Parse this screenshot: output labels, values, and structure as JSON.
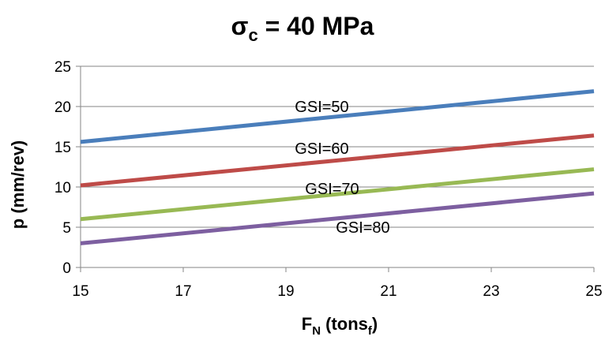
{
  "chart_data": {
    "type": "line",
    "title": {
      "symbol": "σ",
      "subscript": "c",
      "rest": " = 40 MPa"
    },
    "xlabel": {
      "main": "F",
      "sub1": "N",
      "mid": " (tons",
      "sub2": "f",
      "end": ")"
    },
    "ylabel": "p (mm/rev)",
    "xlim": [
      15,
      25
    ],
    "ylim": [
      0,
      25
    ],
    "xticks": [
      "15",
      "17",
      "19",
      "21",
      "23",
      "25"
    ],
    "yticks": [
      "0",
      "5",
      "10",
      "15",
      "20",
      "25"
    ],
    "grid": "horizontal",
    "series": [
      {
        "name": "GSI=50",
        "color": "#4a7ebb",
        "x": [
          15,
          25
        ],
        "y": [
          15.6,
          21.9
        ],
        "label_at": [
          19.7,
          20.0
        ]
      },
      {
        "name": "GSI=60",
        "color": "#be4b48",
        "x": [
          15,
          25
        ],
        "y": [
          10.2,
          16.4
        ],
        "label_at": [
          19.7,
          14.8
        ]
      },
      {
        "name": "GSI=70",
        "color": "#98b954",
        "x": [
          15,
          25
        ],
        "y": [
          6.0,
          12.2
        ],
        "label_at": [
          19.9,
          9.8
        ]
      },
      {
        "name": "GSI=80",
        "color": "#7d5fa0",
        "x": [
          15,
          25
        ],
        "y": [
          3.0,
          9.2
        ],
        "label_at": [
          20.5,
          5.0
        ]
      }
    ]
  }
}
